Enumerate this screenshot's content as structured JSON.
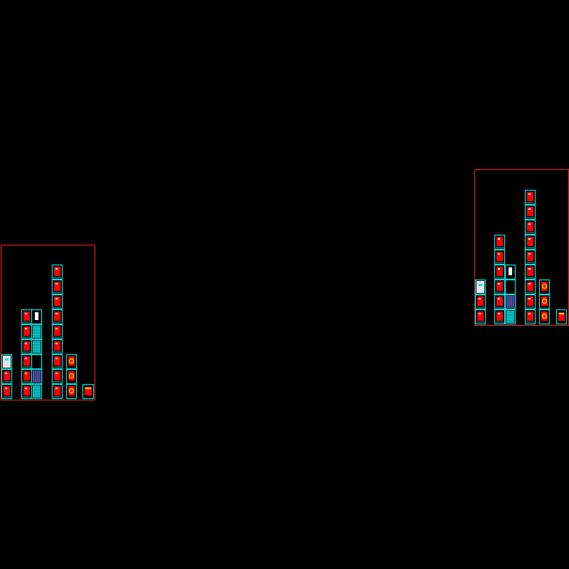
{
  "drawing": {
    "background_color": "#000000",
    "frame_color": "#ff2020",
    "sheet_border_color": "#00e5e5",
    "sheet_fill_color": "#000000",
    "plan_color": "#ff0000",
    "hatch_color": "#00e5e5",
    "accent_color": "#ffff00",
    "grid_color": "#8080ff",
    "white_color": "#ffffff"
  },
  "sheet_groups": [
    {
      "name": "left-sheet-set",
      "columns": [
        {
          "sheets": [
            "plan",
            "plan",
            "white-detail"
          ]
        },
        {
          "sheets": [
            "plan",
            "plan",
            "plan",
            "plan",
            "plan",
            "plan"
          ]
        },
        {
          "sheets": [
            "hatch",
            "grid",
            "empty",
            "hatch",
            "hatch",
            "white-box"
          ]
        },
        {
          "sheets": [
            "plan",
            "plan",
            "plan",
            "plan",
            "plan",
            "plan",
            "plan",
            "plan",
            "plan"
          ]
        },
        {
          "sheets": [
            "yellow-detail",
            "yellow-detail",
            "yellow-detail"
          ]
        },
        {
          "sheets": [
            "small-detail"
          ]
        }
      ]
    },
    {
      "name": "right-sheet-set",
      "columns": [
        {
          "sheets": [
            "plan",
            "plan",
            "white-detail"
          ]
        },
        {
          "sheets": [
            "plan",
            "plan",
            "plan",
            "plan",
            "plan",
            "plan"
          ]
        },
        {
          "sheets": [
            "hatch",
            "grid",
            "empty",
            "white-box"
          ]
        },
        {
          "sheets": [
            "plan",
            "plan",
            "plan",
            "plan",
            "plan",
            "plan",
            "plan",
            "plan",
            "plan"
          ]
        },
        {
          "sheets": [
            "yellow-detail",
            "yellow-detail",
            "yellow-detail"
          ]
        },
        {
          "sheets": [
            "small-detail"
          ]
        }
      ]
    }
  ]
}
